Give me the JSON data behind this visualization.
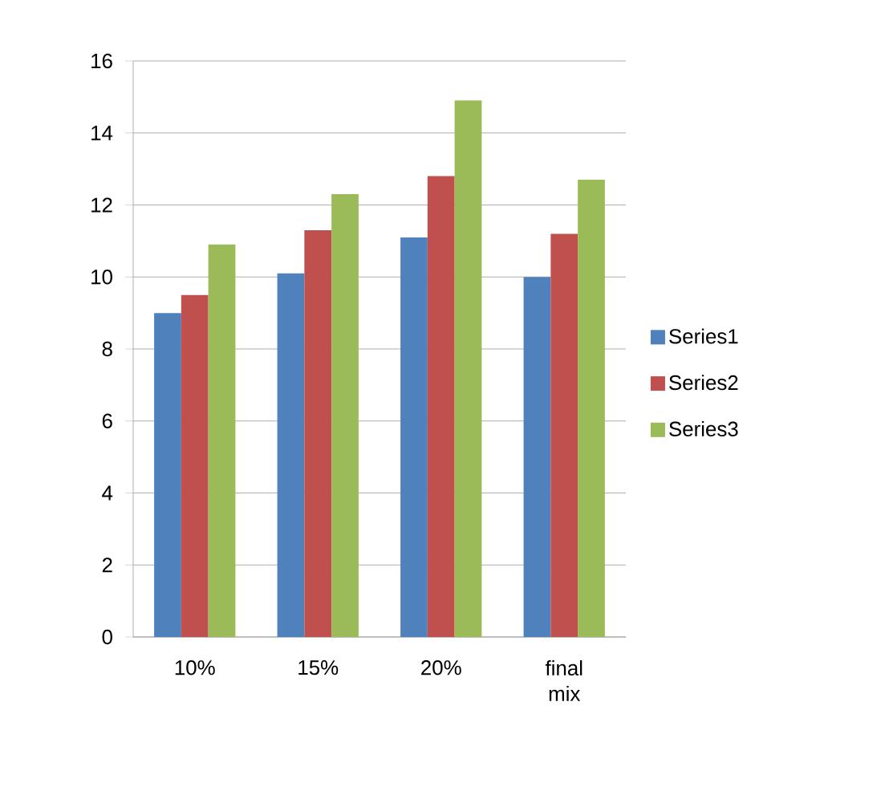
{
  "chart_data": {
    "type": "bar",
    "categories": [
      "10%",
      "15%",
      "20%",
      "final mix"
    ],
    "series": [
      {
        "name": "Series1",
        "color": "#4f81bd",
        "values": [
          9.0,
          10.1,
          11.1,
          10.0
        ]
      },
      {
        "name": "Series2",
        "color": "#c0504d",
        "values": [
          9.5,
          11.3,
          12.8,
          11.2
        ]
      },
      {
        "name": "Series3",
        "color": "#9bbb59",
        "values": [
          10.9,
          12.3,
          14.9,
          12.7
        ]
      }
    ],
    "ylim": [
      0,
      16
    ],
    "yticks": [
      0,
      2,
      4,
      6,
      8,
      10,
      12,
      14,
      16
    ],
    "grid": "y",
    "legend": "right"
  }
}
